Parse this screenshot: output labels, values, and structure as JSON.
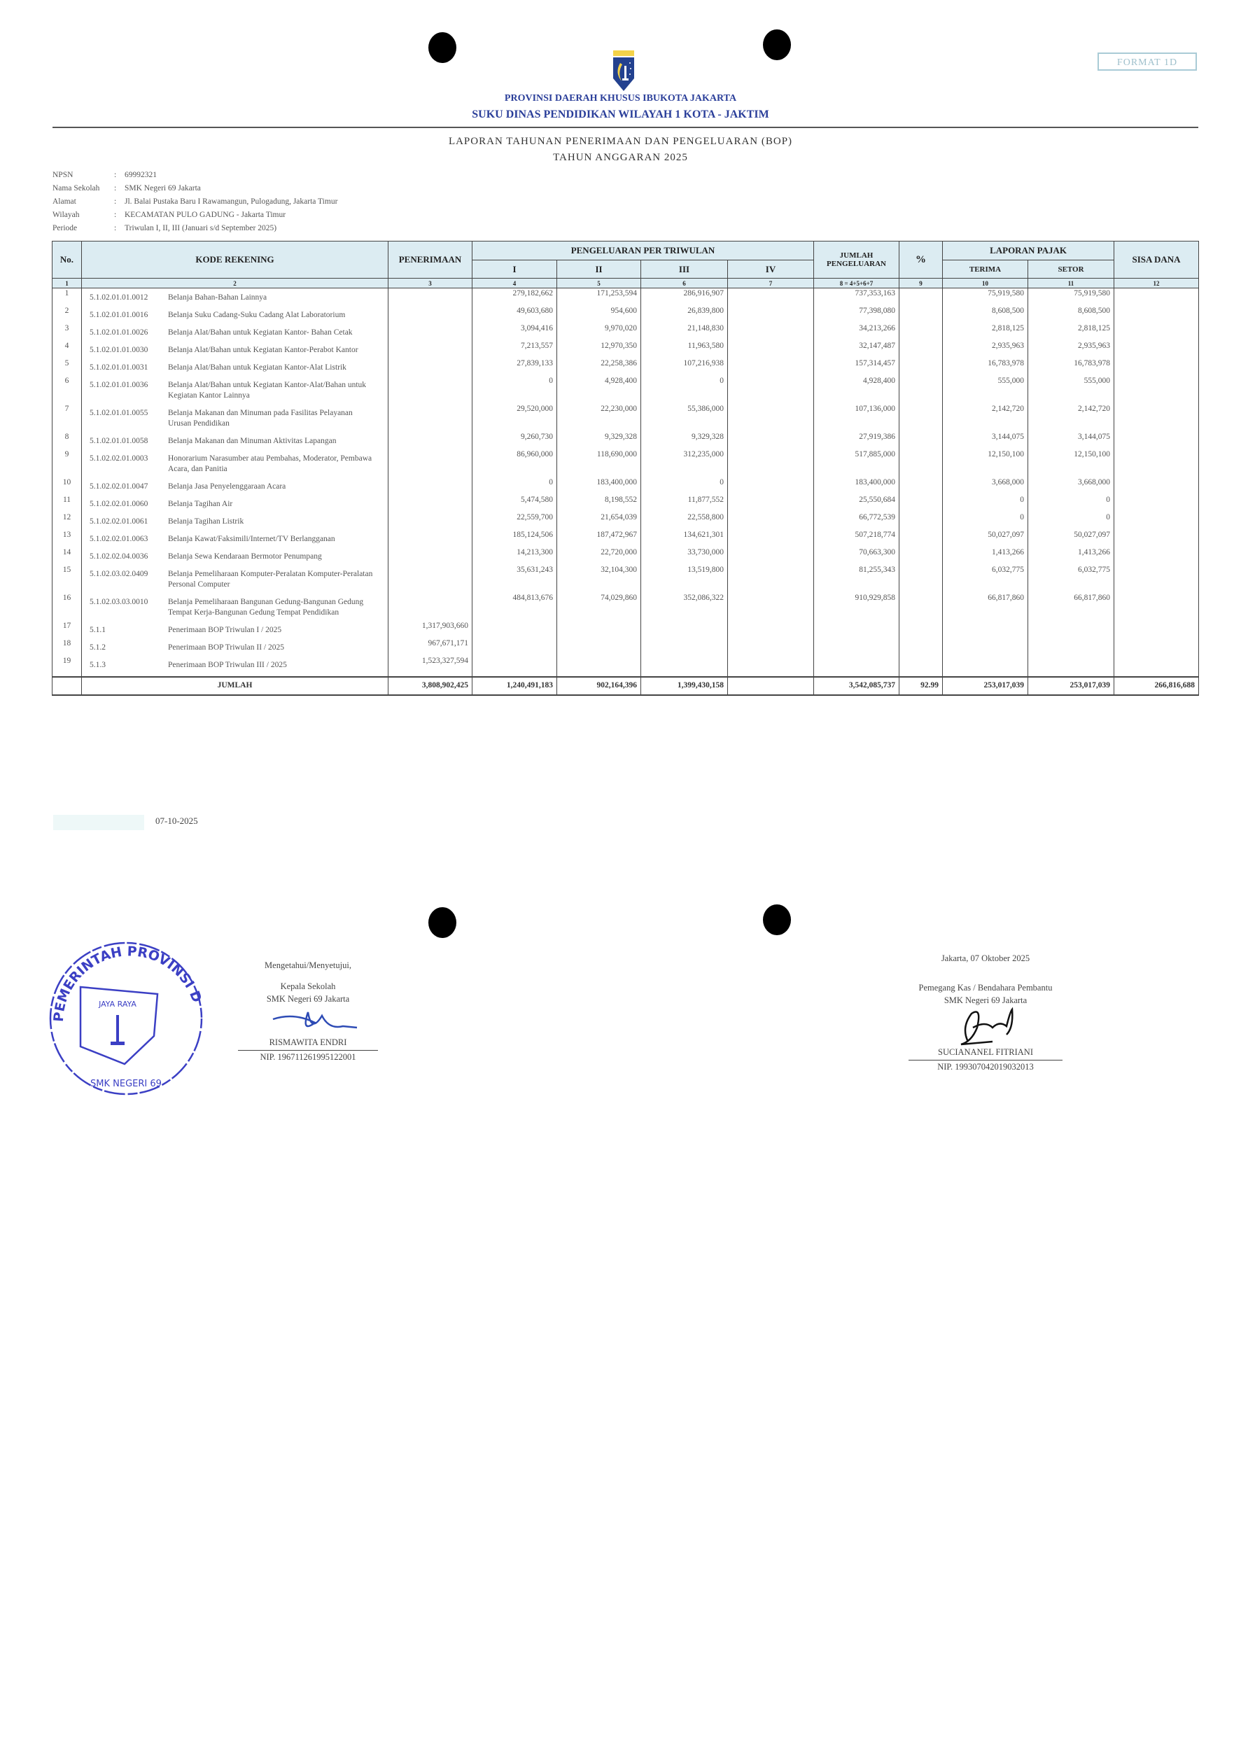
{
  "header": {
    "logo_text": "JAYA RAYA",
    "format_label": "FORMAT 1D",
    "line1": "PROVINSI DAERAH KHUSUS IBUKOTA JAKARTA",
    "line2": "SUKU DINAS PENDIDIKAN WILAYAH 1 KOTA - JAKTIM",
    "title": "LAPORAN TAHUNAN PENERIMAAN DAN PENGELUARAN (BOP)",
    "subtitle": "TAHUN ANGGARAN 2025"
  },
  "info": [
    {
      "label": "NPSN",
      "value": "69992321"
    },
    {
      "label": "Nama Sekolah",
      "value": "SMK Negeri 69 Jakarta"
    },
    {
      "label": "Alamat",
      "value": "Jl. Balai Pustaka Baru I Rawamangun, Pulogadung, Jakarta Timur"
    },
    {
      "label": "Wilayah",
      "value": "KECAMATAN PULO GADUNG - Jakarta Timur"
    },
    {
      "label": "Periode",
      "value": "Triwulan I, II, III  (Januari s/d September 2025)"
    }
  ],
  "table": {
    "headers": {
      "no": "No.",
      "kode": "KODE REKENING",
      "penerimaan": "PENERIMAAN",
      "pengeluaran": "PENGELUARAN PER TRIWULAN",
      "q1": "I",
      "q2": "II",
      "q3": "III",
      "q4": "IV",
      "jumlah": "JUMLAH PENGELUARAN",
      "pct": "%",
      "pajak": "LAPORAN PAJAK",
      "terima": "TERIMA",
      "setor": "SETOR",
      "sisa": "SISA DANA"
    },
    "col_numbers": [
      "1",
      "2",
      "3",
      "4",
      "5",
      "6",
      "7",
      "8 = 4+5+6+7",
      "9",
      "10",
      "11",
      "12"
    ],
    "rows": [
      {
        "no": "1",
        "code": "5.1.02.01.01.0012",
        "desc": "Belanja Bahan-Bahan Lainnya",
        "penerimaan": "",
        "q1": "279,182,662",
        "q2": "171,253,594",
        "q3": "286,916,907",
        "q4": "",
        "jumlah": "737,353,163",
        "pct": "",
        "terima": "75,919,580",
        "setor": "75,919,580",
        "sisa": ""
      },
      {
        "no": "2",
        "code": "5.1.02.01.01.0016",
        "desc": "Belanja Suku Cadang-Suku Cadang Alat Laboratorium",
        "penerimaan": "",
        "q1": "49,603,680",
        "q2": "954,600",
        "q3": "26,839,800",
        "q4": "",
        "jumlah": "77,398,080",
        "pct": "",
        "terima": "8,608,500",
        "setor": "8,608,500",
        "sisa": ""
      },
      {
        "no": "3",
        "code": "5.1.02.01.01.0026",
        "desc": "Belanja Alat/Bahan untuk Kegiatan Kantor- Bahan Cetak",
        "penerimaan": "",
        "q1": "3,094,416",
        "q2": "9,970,020",
        "q3": "21,148,830",
        "q4": "",
        "jumlah": "34,213,266",
        "pct": "",
        "terima": "2,818,125",
        "setor": "2,818,125",
        "sisa": ""
      },
      {
        "no": "4",
        "code": "5.1.02.01.01.0030",
        "desc": "Belanja Alat/Bahan untuk Kegiatan Kantor-Perabot Kantor",
        "penerimaan": "",
        "q1": "7,213,557",
        "q2": "12,970,350",
        "q3": "11,963,580",
        "q4": "",
        "jumlah": "32,147,487",
        "pct": "",
        "terima": "2,935,963",
        "setor": "2,935,963",
        "sisa": ""
      },
      {
        "no": "5",
        "code": "5.1.02.01.01.0031",
        "desc": "Belanja Alat/Bahan untuk Kegiatan Kantor-Alat Listrik",
        "penerimaan": "",
        "q1": "27,839,133",
        "q2": "22,258,386",
        "q3": "107,216,938",
        "q4": "",
        "jumlah": "157,314,457",
        "pct": "",
        "terima": "16,783,978",
        "setor": "16,783,978",
        "sisa": ""
      },
      {
        "no": "6",
        "code": "5.1.02.01.01.0036",
        "desc": "Belanja Alat/Bahan untuk Kegiatan Kantor-Alat/Bahan untuk Kegiatan Kantor Lainnya",
        "penerimaan": "",
        "q1": "0",
        "q2": "4,928,400",
        "q3": "0",
        "q4": "",
        "jumlah": "4,928,400",
        "pct": "",
        "terima": "555,000",
        "setor": "555,000",
        "sisa": ""
      },
      {
        "no": "7",
        "code": "5.1.02.01.01.0055",
        "desc": "Belanja Makanan dan Minuman pada Fasilitas Pelayanan Urusan Pendidikan",
        "penerimaan": "",
        "q1": "29,520,000",
        "q2": "22,230,000",
        "q3": "55,386,000",
        "q4": "",
        "jumlah": "107,136,000",
        "pct": "",
        "terima": "2,142,720",
        "setor": "2,142,720",
        "sisa": ""
      },
      {
        "no": "8",
        "code": "5.1.02.01.01.0058",
        "desc": "Belanja Makanan dan Minuman Aktivitas Lapangan",
        "penerimaan": "",
        "q1": "9,260,730",
        "q2": "9,329,328",
        "q3": "9,329,328",
        "q4": "",
        "jumlah": "27,919,386",
        "pct": "",
        "terima": "3,144,075",
        "setor": "3,144,075",
        "sisa": ""
      },
      {
        "no": "9",
        "code": "5.1.02.02.01.0003",
        "desc": "Honorarium Narasumber atau Pembahas, Moderator, Pembawa Acara, dan Panitia",
        "penerimaan": "",
        "q1": "86,960,000",
        "q2": "118,690,000",
        "q3": "312,235,000",
        "q4": "",
        "jumlah": "517,885,000",
        "pct": "",
        "terima": "12,150,100",
        "setor": "12,150,100",
        "sisa": ""
      },
      {
        "no": "10",
        "code": "5.1.02.02.01.0047",
        "desc": "Belanja Jasa Penyelenggaraan Acara",
        "penerimaan": "",
        "q1": "0",
        "q2": "183,400,000",
        "q3": "0",
        "q4": "",
        "jumlah": "183,400,000",
        "pct": "",
        "terima": "3,668,000",
        "setor": "3,668,000",
        "sisa": ""
      },
      {
        "no": "11",
        "code": "5.1.02.02.01.0060",
        "desc": "Belanja Tagihan Air",
        "penerimaan": "",
        "q1": "5,474,580",
        "q2": "8,198,552",
        "q3": "11,877,552",
        "q4": "",
        "jumlah": "25,550,684",
        "pct": "",
        "terima": "0",
        "setor": "0",
        "sisa": ""
      },
      {
        "no": "12",
        "code": "5.1.02.02.01.0061",
        "desc": "Belanja Tagihan Listrik",
        "penerimaan": "",
        "q1": "22,559,700",
        "q2": "21,654,039",
        "q3": "22,558,800",
        "q4": "",
        "jumlah": "66,772,539",
        "pct": "",
        "terima": "0",
        "setor": "0",
        "sisa": ""
      },
      {
        "no": "13",
        "code": "5.1.02.02.01.0063",
        "desc": "Belanja Kawat/Faksimili/Internet/TV Berlangganan",
        "penerimaan": "",
        "q1": "185,124,506",
        "q2": "187,472,967",
        "q3": "134,621,301",
        "q4": "",
        "jumlah": "507,218,774",
        "pct": "",
        "terima": "50,027,097",
        "setor": "50,027,097",
        "sisa": ""
      },
      {
        "no": "14",
        "code": "5.1.02.02.04.0036",
        "desc": "Belanja Sewa Kendaraan Bermotor Penumpang",
        "penerimaan": "",
        "q1": "14,213,300",
        "q2": "22,720,000",
        "q3": "33,730,000",
        "q4": "",
        "jumlah": "70,663,300",
        "pct": "",
        "terima": "1,413,266",
        "setor": "1,413,266",
        "sisa": ""
      },
      {
        "no": "15",
        "code": "5.1.02.03.02.0409",
        "desc": "Belanja Pemeliharaan Komputer-Peralatan Komputer-Peralatan Personal Computer",
        "penerimaan": "",
        "q1": "35,631,243",
        "q2": "32,104,300",
        "q3": "13,519,800",
        "q4": "",
        "jumlah": "81,255,343",
        "pct": "",
        "terima": "6,032,775",
        "setor": "6,032,775",
        "sisa": ""
      },
      {
        "no": "16",
        "code": "5.1.02.03.03.0010",
        "desc": "Belanja Pemeliharaan Bangunan Gedung-Bangunan Gedung Tempat Kerja-Bangunan Gedung Tempat Pendidikan",
        "penerimaan": "",
        "q1": "484,813,676",
        "q2": "74,029,860",
        "q3": "352,086,322",
        "q4": "",
        "jumlah": "910,929,858",
        "pct": "",
        "terima": "66,817,860",
        "setor": "66,817,860",
        "sisa": ""
      },
      {
        "no": "17",
        "code": "5.1.1",
        "desc": "Penerimaan BOP Triwulan I / 2025",
        "penerimaan": "1,317,903,660",
        "q1": "",
        "q2": "",
        "q3": "",
        "q4": "",
        "jumlah": "",
        "pct": "",
        "terima": "",
        "setor": "",
        "sisa": ""
      },
      {
        "no": "18",
        "code": "5.1.2",
        "desc": "Penerimaan BOP Triwulan II / 2025",
        "penerimaan": "967,671,171",
        "q1": "",
        "q2": "",
        "q3": "",
        "q4": "",
        "jumlah": "",
        "pct": "",
        "terima": "",
        "setor": "",
        "sisa": ""
      },
      {
        "no": "19",
        "code": "5.1.3",
        "desc": "Penerimaan BOP Triwulan III / 2025",
        "penerimaan": "1,523,327,594",
        "q1": "",
        "q2": "",
        "q3": "",
        "q4": "",
        "jumlah": "",
        "pct": "",
        "terima": "",
        "setor": "",
        "sisa": ""
      }
    ],
    "total": {
      "label": "JUMLAH",
      "penerimaan": "3,808,902,425",
      "q1": "1,240,491,183",
      "q2": "902,164,396",
      "q3": "1,399,430,158",
      "q4": "",
      "jumlah": "3,542,085,737",
      "pct": "92.99",
      "terima": "253,017,039",
      "setor": "253,017,039",
      "sisa": "266,816,688"
    }
  },
  "print_date": "07-10-2025",
  "signatures": {
    "left": {
      "line1": "Mengetahui/Menyetujui,",
      "line2": "Kepala Sekolah",
      "line3": "SMK Negeri 69 Jakarta",
      "name": "RISMAWITA ENDRI",
      "nip": "NIP. 196711261995122001",
      "stamp_text": "PEMERINTAH PROVINSI DKI JAKARTA",
      "stamp_inner": "JAYA RAYA",
      "stamp_bottom": "SMK NEGERI 69",
      "stamp_color": "#3b3fc4"
    },
    "right": {
      "place_date": "Jakarta,  07 Oktober 2025",
      "line1": "Pemegang Kas / Bendahara Pembantu",
      "line2": "SMK Negeri 69 Jakarta",
      "name": "SUCIANANEL FITRIANI",
      "nip": "NIP. 199307042019032013"
    }
  },
  "colors": {
    "header_bg": "#dcecf2",
    "title_blue": "#2b3f9a",
    "stamp_ink": "#3b3fc4"
  }
}
